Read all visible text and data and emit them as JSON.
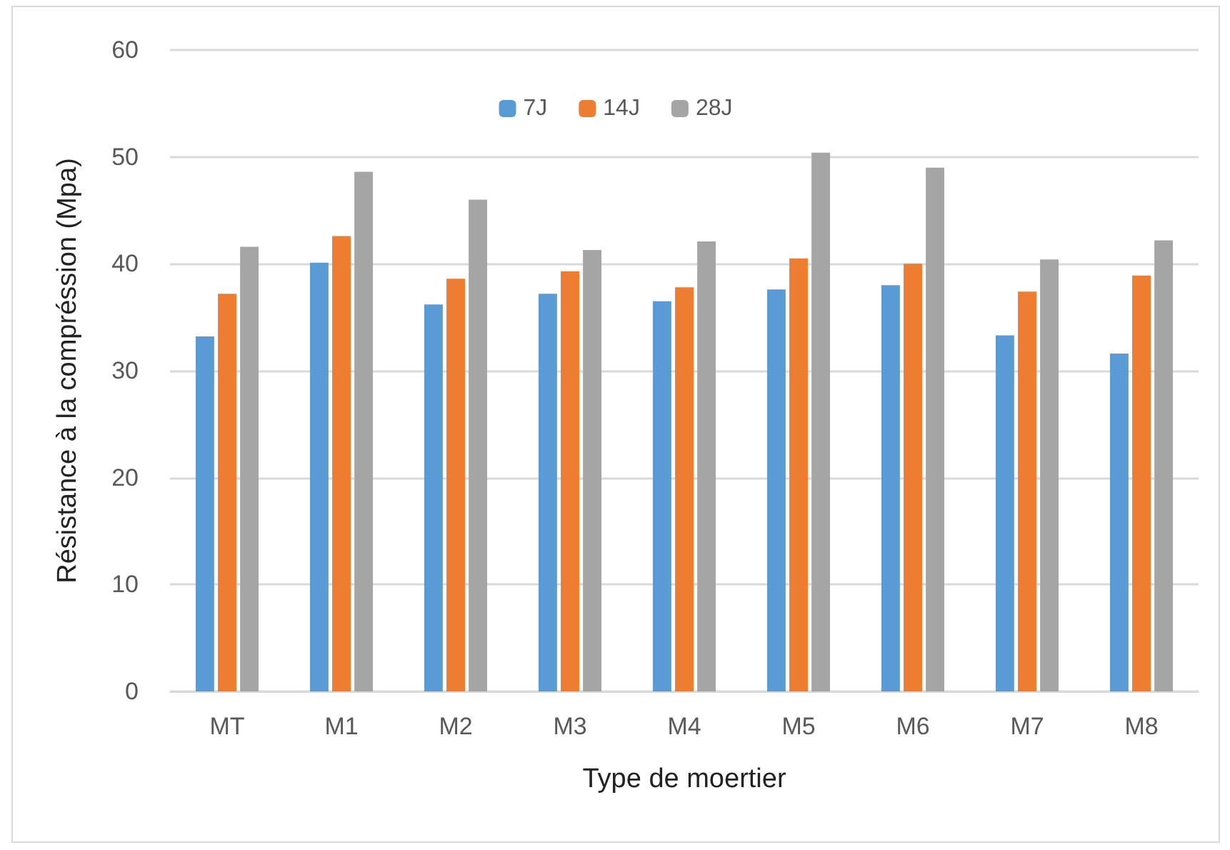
{
  "chart_data": {
    "type": "bar",
    "xlabel": "Type de moertier",
    "ylabel": "Résistance à la compréssion (Mpa)",
    "categories": [
      "MT",
      "M1",
      "M2",
      "M3",
      "M4",
      "M5",
      "M6",
      "M7",
      "M8"
    ],
    "series": [
      {
        "name": "7J",
        "color": "#5b9bd5",
        "values": [
          33.2,
          40.1,
          36.2,
          37.2,
          36.5,
          37.6,
          38.0,
          33.3,
          31.6
        ]
      },
      {
        "name": "14J",
        "color": "#ed7d31",
        "values": [
          37.2,
          42.6,
          38.6,
          39.3,
          37.8,
          40.5,
          40.0,
          37.4,
          38.9
        ]
      },
      {
        "name": "28J",
        "color": "#a5a5a5",
        "values": [
          41.6,
          48.6,
          46.0,
          41.3,
          42.1,
          50.4,
          49.0,
          40.4,
          42.2
        ]
      }
    ],
    "ylim": [
      0,
      60
    ],
    "yticks": [
      0,
      10,
      20,
      30,
      40,
      50,
      60
    ],
    "grid": "y",
    "legend": "top"
  }
}
